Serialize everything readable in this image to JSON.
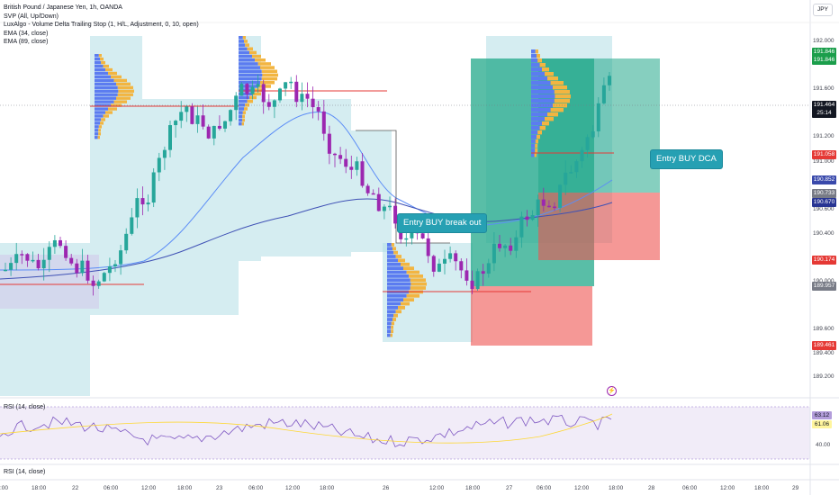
{
  "legend": {
    "title": "British Pound / Japanese Yen, 1h, OANDA",
    "line2": "SVP (All, Up/Down)",
    "line3": "LuxAlgo - Volume Delta Trailing Stop (1, H/L, Adjustment, 0, 10, open)",
    "line4": "EMA (34, close)",
    "line5": "EMA (89, close)"
  },
  "currency_button": "JPY",
  "price_axis": [
    "192.000",
    "191.600",
    "191.200",
    "191.000",
    "190.600",
    "190.400",
    "190.000",
    "189.600",
    "189.400",
    "189.200"
  ],
  "price_tags": [
    {
      "text": "191.846",
      "color": "#1b9e4b"
    },
    {
      "text": "191.846",
      "color": "#1b9e4b"
    },
    {
      "text": "191.464",
      "color": "#131722"
    },
    {
      "text": "25:14",
      "color": "#131722"
    },
    {
      "text": "191.058",
      "color": "#e53935"
    },
    {
      "text": "190.852",
      "color": "#3949ab"
    },
    {
      "text": "190.733",
      "color": "#787b86"
    },
    {
      "text": "190.670",
      "color": "#283593"
    },
    {
      "text": "190.174",
      "color": "#e53935"
    },
    {
      "text": "189.957",
      "color": "#787b86"
    },
    {
      "text": "189.461",
      "color": "#e53935"
    }
  ],
  "time_axis": [
    ":00",
    "18:00",
    "22",
    "06:00",
    "12:00",
    "18:00",
    "23",
    "06:00",
    "12:00",
    "18:00",
    "26",
    "12:00",
    "18:00",
    "27",
    "06:00",
    "12:00",
    "18:00",
    "28",
    "06:00",
    "12:00",
    "18:00",
    "29"
  ],
  "callouts": {
    "breakout": "Entry BUY break out",
    "dca": "Entry BUY DCA"
  },
  "rsi": {
    "title": "RSI (14, close)",
    "title2": "RSI (14, close)",
    "value": "63.12",
    "signal": "61.06",
    "axis_label": "40.00"
  },
  "colors": {
    "up": "#26a69a",
    "down": "#9c27b0",
    "profit_zone": "#22a88a",
    "loss_zone": "#ef5350",
    "volume_profile_up": "#5b7cf0",
    "volume_profile_down": "#f2b541",
    "trail_stop_zone": "#b2dfe6",
    "ema34": "#5c8df6",
    "ema89": "#3f51b5"
  }
}
